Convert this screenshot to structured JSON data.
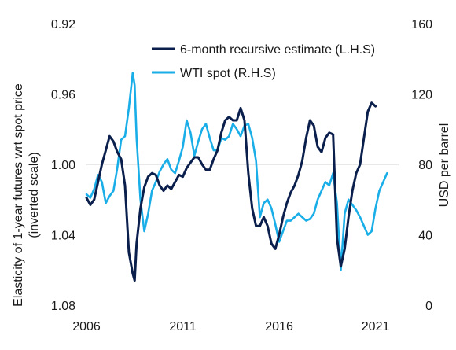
{
  "chart_data": {
    "type": "line",
    "title": "",
    "xlabel": "",
    "ylabel_left": [
      "Elasticity of 1-year futures wrt spot price",
      "(inverted scale)"
    ],
    "ylabel_right": "USD per barrel",
    "x_ticks": [
      "2006",
      "2011",
      "2016",
      "2021"
    ],
    "left_axis": {
      "ticks": [
        "0.92",
        "0.96",
        "1.00",
        "1.04",
        "1.08"
      ],
      "range": [
        0.92,
        1.08
      ],
      "inverted": true
    },
    "right_axis": {
      "ticks": [
        "160",
        "120",
        "80",
        "40",
        "0"
      ],
      "range": [
        0,
        160
      ]
    },
    "xlim": [
      2006,
      2022.2
    ],
    "reference_line": {
      "axis": "left",
      "value": 1.0
    },
    "grid": false,
    "legend_position": "top-right",
    "colors": {
      "recursive": "#0b1f4d",
      "wti": "#1aaee8",
      "refline": "#d0d0d0",
      "text": "#1a1a1a"
    },
    "series": [
      {
        "name": "6-month recursive estimate (L.H.S)",
        "axis": "left",
        "x": [
          2006.0,
          2006.2,
          2006.4,
          2006.6,
          2006.8,
          2007.0,
          2007.2,
          2007.4,
          2007.6,
          2007.8,
          2008.0,
          2008.2,
          2008.4,
          2008.5,
          2008.6,
          2008.8,
          2009.0,
          2009.2,
          2009.4,
          2009.6,
          2009.8,
          2010.0,
          2010.2,
          2010.4,
          2010.6,
          2010.8,
          2011.0,
          2011.2,
          2011.4,
          2011.6,
          2011.8,
          2012.0,
          2012.2,
          2012.4,
          2012.6,
          2012.8,
          2013.0,
          2013.2,
          2013.4,
          2013.6,
          2013.8,
          2014.0,
          2014.2,
          2014.4,
          2014.6,
          2014.8,
          2015.0,
          2015.2,
          2015.4,
          2015.6,
          2015.8,
          2016.0,
          2016.2,
          2016.4,
          2016.6,
          2016.8,
          2017.0,
          2017.2,
          2017.4,
          2017.6,
          2017.8,
          2018.0,
          2018.2,
          2018.4,
          2018.6,
          2018.8,
          2019.0,
          2019.2,
          2019.4,
          2019.6,
          2019.8,
          2020.0,
          2020.2,
          2020.4,
          2020.6,
          2020.8,
          2021.0,
          2021.2,
          2021.4,
          2021.6
        ],
        "values": [
          1.019,
          1.023,
          1.02,
          1.01,
          1.0,
          0.992,
          0.984,
          0.987,
          0.993,
          0.997,
          1.012,
          1.05,
          1.062,
          1.066,
          1.045,
          1.025,
          1.013,
          1.007,
          1.005,
          1.006,
          1.012,
          1.015,
          1.012,
          1.014,
          1.01,
          1.006,
          1.007,
          1.002,
          0.999,
          0.996,
          0.996,
          1.0,
          1.003,
          1.003,
          0.997,
          0.992,
          0.982,
          0.975,
          0.973,
          0.975,
          0.975,
          0.968,
          0.975,
          1.005,
          1.025,
          1.035,
          1.035,
          1.03,
          1.035,
          1.045,
          1.048,
          1.04,
          1.03,
          1.022,
          1.016,
          1.012,
          1.006,
          0.998,
          0.985,
          0.975,
          0.978,
          0.99,
          0.993,
          0.985,
          0.982,
          0.983,
          1.042,
          1.058,
          1.048,
          1.03,
          1.015,
          1.005,
          1.0,
          0.985,
          0.97,
          0.965,
          0.967,
          null,
          null,
          null
        ]
      },
      {
        "name": "WTI spot (R.H.S)",
        "axis": "right",
        "x": [
          2006.0,
          2006.2,
          2006.4,
          2006.6,
          2006.8,
          2007.0,
          2007.2,
          2007.4,
          2007.6,
          2007.8,
          2008.0,
          2008.2,
          2008.4,
          2008.5,
          2008.6,
          2008.8,
          2009.0,
          2009.2,
          2009.4,
          2009.6,
          2009.8,
          2010.0,
          2010.2,
          2010.4,
          2010.6,
          2010.8,
          2011.0,
          2011.2,
          2011.4,
          2011.6,
          2011.8,
          2012.0,
          2012.2,
          2012.4,
          2012.6,
          2012.8,
          2013.0,
          2013.2,
          2013.4,
          2013.6,
          2013.8,
          2014.0,
          2014.2,
          2014.4,
          2014.6,
          2014.8,
          2015.0,
          2015.2,
          2015.4,
          2015.6,
          2015.8,
          2016.0,
          2016.2,
          2016.4,
          2016.6,
          2016.8,
          2017.0,
          2017.2,
          2017.4,
          2017.6,
          2017.8,
          2018.0,
          2018.2,
          2018.4,
          2018.6,
          2018.8,
          2019.0,
          2019.2,
          2019.4,
          2019.6,
          2019.8,
          2020.0,
          2020.2,
          2020.4,
          2020.6,
          2020.8,
          2021.0,
          2021.2,
          2021.4,
          2021.6
        ],
        "values": [
          63,
          61,
          66,
          74,
          70,
          58,
          62,
          65,
          78,
          94,
          96,
          112,
          132,
          125,
          95,
          60,
          42,
          52,
          65,
          70,
          76,
          80,
          83,
          77,
          75,
          82,
          90,
          105,
          98,
          85,
          93,
          100,
          103,
          95,
          88,
          88,
          95,
          94,
          96,
          103,
          100,
          96,
          102,
          103,
          95,
          82,
          50,
          58,
          60,
          55,
          46,
          36,
          42,
          48,
          48,
          50,
          52,
          50,
          48,
          49,
          52,
          60,
          65,
          70,
          68,
          75,
          58,
          20,
          52,
          60,
          57,
          54,
          50,
          45,
          40,
          42,
          55,
          65,
          70,
          75
        ]
      }
    ]
  }
}
